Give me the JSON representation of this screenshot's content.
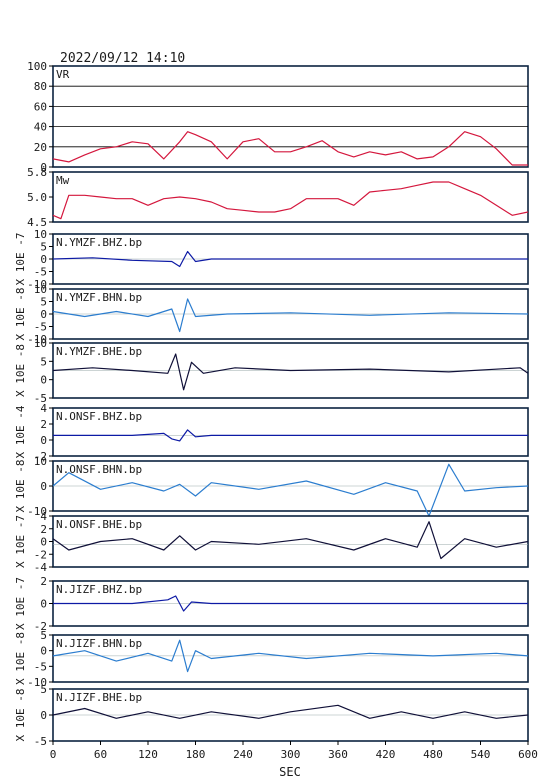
{
  "timestamp": "2022/09/12  14:10",
  "xlabel": "SEC",
  "colors": {
    "frame": "#0b2340",
    "vr": "#d4173d",
    "mw": "#d4173d",
    "navy": "#0d1aa5",
    "cyan": "#2b7dcf",
    "black_navy": "#101038"
  },
  "panels": [
    {
      "label": "VR",
      "ylabel": "",
      "yticks": [
        "100",
        "80",
        "60",
        "40",
        "20",
        "0"
      ]
    },
    {
      "label": "Mw",
      "ylabel": "",
      "yticks": [
        "5.8",
        "5.0",
        "4.5"
      ]
    },
    {
      "label": "N.YMZF.BHZ.bp",
      "ylabel": "X 10E -7",
      "yticks": [
        "10",
        "5",
        "0",
        "-5",
        "-10"
      ]
    },
    {
      "label": "N.YMZF.BHN.bp",
      "ylabel": "X 10E -8",
      "yticks": [
        "10",
        "5",
        "0",
        "-5",
        "-10"
      ]
    },
    {
      "label": "N.YMZF.BHE.bp",
      "ylabel": "X 10E -8",
      "yticks": [
        "10",
        "5",
        "0",
        "-5"
      ]
    },
    {
      "label": "N.ONSF.BHZ.bp",
      "ylabel": "X 10E -4",
      "yticks": [
        "4",
        "2",
        "0",
        "-2"
      ]
    },
    {
      "label": "N.ONSF.BHN.bp",
      "ylabel": "X 10E -8",
      "yticks": [
        "10",
        "0",
        "-10"
      ]
    },
    {
      "label": "N.ONSF.BHE.bp",
      "ylabel": "X 10E -7",
      "yticks": [
        "4",
        "2",
        "0",
        "-2",
        "-4"
      ]
    },
    {
      "label": "N.JIZF.BHZ.bp",
      "ylabel": "X 10E -7",
      "yticks": [
        "2",
        "0",
        "-2"
      ]
    },
    {
      "label": "N.JIZF.BHN.bp",
      "ylabel": "X 10E -8",
      "yticks": [
        "5",
        "0",
        "-5",
        "-10"
      ]
    },
    {
      "label": "N.JIZF.BHE.bp",
      "ylabel": "X 10E -8",
      "yticks": [
        "5",
        "0",
        "-5"
      ]
    }
  ],
  "chart_data": [
    {
      "type": "line",
      "title": "VR",
      "xlim": [
        0,
        600
      ],
      "ylim": [
        0,
        100
      ],
      "x": [
        0,
        20,
        40,
        60,
        80,
        100,
        120,
        140,
        160,
        170,
        180,
        200,
        220,
        240,
        260,
        280,
        300,
        320,
        340,
        360,
        380,
        400,
        420,
        440,
        460,
        480,
        500,
        520,
        540,
        560,
        580,
        600
      ],
      "values": [
        8,
        5,
        12,
        18,
        20,
        25,
        23,
        8,
        25,
        35,
        32,
        25,
        8,
        25,
        28,
        15,
        15,
        20,
        26,
        15,
        10,
        15,
        12,
        15,
        8,
        10,
        20,
        35,
        30,
        18,
        2,
        2
      ]
    },
    {
      "type": "line",
      "title": "Mw",
      "xlim": [
        0,
        600
      ],
      "ylim": [
        4.3,
        5.8
      ],
      "x": [
        0,
        10,
        20,
        40,
        60,
        80,
        100,
        120,
        140,
        160,
        180,
        200,
        220,
        240,
        260,
        280,
        300,
        320,
        340,
        360,
        380,
        400,
        420,
        440,
        460,
        480,
        500,
        520,
        540,
        560,
        580,
        600
      ],
      "values": [
        4.5,
        4.4,
        5.1,
        5.1,
        5.05,
        5.0,
        5.0,
        4.8,
        5.0,
        5.05,
        5.0,
        4.9,
        4.7,
        4.65,
        4.6,
        4.6,
        4.7,
        5.0,
        5.0,
        5.0,
        4.8,
        5.2,
        5.25,
        5.3,
        5.4,
        5.5,
        5.5,
        5.3,
        5.1,
        4.8,
        4.5,
        4.6
      ]
    },
    {
      "type": "line",
      "title": "N.YMZF.BHZ.bp",
      "xlim": [
        0,
        600
      ],
      "ylim": [
        -10,
        10
      ],
      "x": [
        0,
        50,
        100,
        150,
        160,
        170,
        180,
        200,
        240,
        300,
        600
      ],
      "values": [
        0,
        0.5,
        -0.5,
        -1,
        -3,
        3,
        -1,
        0,
        0,
        0,
        0
      ]
    },
    {
      "type": "line",
      "title": "N.YMZF.BHN.bp",
      "xlim": [
        0,
        600
      ],
      "ylim": [
        -10,
        10
      ],
      "x": [
        0,
        40,
        80,
        120,
        150,
        160,
        170,
        180,
        220,
        300,
        400,
        500,
        600
      ],
      "values": [
        1,
        -1,
        1,
        -1,
        2,
        -7,
        6,
        -1,
        0,
        0.5,
        -0.5,
        0.5,
        0
      ]
    },
    {
      "type": "line",
      "title": "N.YMZF.BHE.bp",
      "xlim": [
        0,
        600
      ],
      "ylim": [
        -10,
        10
      ],
      "x": [
        0,
        50,
        100,
        145,
        155,
        165,
        175,
        190,
        230,
        300,
        400,
        500,
        590,
        600
      ],
      "values": [
        0,
        1,
        0,
        -1,
        6,
        -7,
        3,
        -1,
        1,
        0,
        0.5,
        -0.5,
        1,
        -1
      ]
    },
    {
      "type": "line",
      "title": "N.ONSF.BHZ.bp",
      "xlim": [
        0,
        600
      ],
      "ylim": [
        -3,
        4
      ],
      "x": [
        0,
        100,
        140,
        150,
        160,
        170,
        180,
        200,
        300,
        600
      ],
      "values": [
        0,
        0,
        0.3,
        -0.5,
        -0.8,
        0.8,
        -0.2,
        0,
        0,
        0
      ]
    },
    {
      "type": "line",
      "title": "N.ONSF.BHN.bp",
      "xlim": [
        0,
        600
      ],
      "ylim": [
        -15,
        15
      ],
      "x": [
        0,
        20,
        60,
        100,
        140,
        160,
        180,
        200,
        260,
        320,
        380,
        420,
        460,
        475,
        500,
        520,
        560,
        600
      ],
      "values": [
        0,
        8,
        -2,
        2,
        -3,
        1,
        -6,
        2,
        -2,
        3,
        -5,
        2,
        -3,
        -18,
        13,
        -3,
        -1,
        0
      ]
    },
    {
      "type": "line",
      "title": "N.ONSF.BHE.bp",
      "xlim": [
        0,
        600
      ],
      "ylim": [
        -4,
        5
      ],
      "x": [
        0,
        20,
        60,
        100,
        140,
        160,
        180,
        200,
        260,
        320,
        380,
        420,
        460,
        475,
        490,
        520,
        560,
        600
      ],
      "values": [
        1,
        -1,
        0.5,
        1,
        -1,
        1.5,
        -1,
        0.5,
        0,
        1,
        -1,
        1,
        -0.5,
        4,
        -2.5,
        1,
        -0.5,
        0.5
      ]
    },
    {
      "type": "line",
      "title": "N.JIZF.BHZ.bp",
      "xlim": [
        0,
        600
      ],
      "ylim": [
        -3,
        3
      ],
      "x": [
        0,
        100,
        145,
        155,
        165,
        175,
        200,
        300,
        600
      ],
      "values": [
        0,
        0,
        0.5,
        1,
        -1,
        0.2,
        0,
        0,
        0
      ]
    },
    {
      "type": "line",
      "title": "N.JIZF.BHN.bp",
      "xlim": [
        0,
        600
      ],
      "ylim": [
        -10,
        8
      ],
      "x": [
        0,
        40,
        80,
        120,
        150,
        160,
        170,
        180,
        200,
        260,
        320,
        400,
        480,
        560,
        600
      ],
      "values": [
        0,
        2,
        -2,
        1,
        -2,
        6,
        -6,
        2,
        -1,
        1,
        -1,
        1,
        0,
        1,
        0
      ]
    },
    {
      "type": "line",
      "title": "N.JIZF.BHE.bp",
      "xlim": [
        0,
        600
      ],
      "ylim": [
        -8,
        8
      ],
      "x": [
        0,
        40,
        80,
        120,
        160,
        200,
        260,
        300,
        360,
        400,
        440,
        480,
        520,
        560,
        600
      ],
      "values": [
        0,
        2,
        -1,
        1,
        -1,
        1,
        -1,
        1,
        3,
        -1,
        1,
        -1,
        1,
        -1,
        0
      ]
    }
  ]
}
